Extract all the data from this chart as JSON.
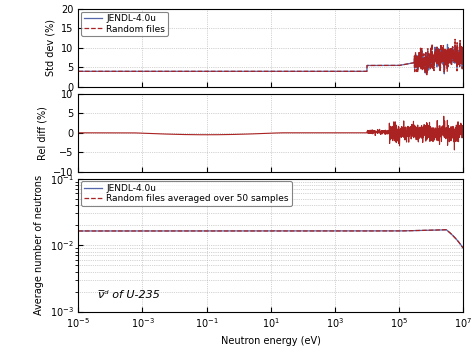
{
  "xlim": [
    1e-05,
    10000000.0
  ],
  "top_panel": {
    "ylabel": "Std dev (%)",
    "ylim": [
      0,
      20
    ],
    "yticks": [
      0,
      5,
      10,
      15,
      20
    ],
    "jendl_color": "#5566aa",
    "random_color": "#aa2222",
    "legend_labels": [
      "JENDL-4.0u",
      "Random files"
    ]
  },
  "mid_panel": {
    "ylabel": "Rel diff (%)",
    "ylim": [
      -10,
      10
    ],
    "yticks": [
      -10,
      -5,
      0,
      5,
      10
    ],
    "random_color": "#aa2222"
  },
  "bot_panel": {
    "ylabel": "Average number of neutrons",
    "ylim": [
      0.001,
      0.1
    ],
    "jendl_color": "#5566aa",
    "random_color": "#aa2222",
    "annotation": "ν̅ᵈ of U-235",
    "legend_labels": [
      "JENDL-4.0u",
      "Random files averaged over 50 samples"
    ]
  },
  "xlabel": "Neutron energy (eV)",
  "background_color": "#ffffff",
  "grid_color": "#aaaaaa"
}
